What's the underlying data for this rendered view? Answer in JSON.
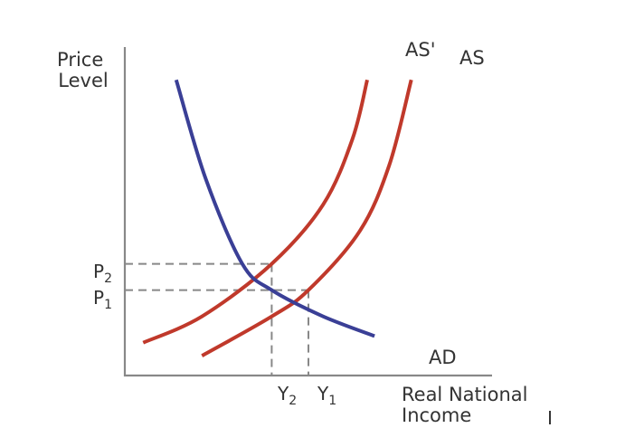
{
  "chart_data": {
    "type": "line",
    "title": "",
    "ylabel_lines": [
      "Price",
      "Level"
    ],
    "xlabel_lines": [
      "Real National",
      "Income"
    ],
    "x_ticks": [
      {
        "main": "Y",
        "sub": "2"
      },
      {
        "main": "Y",
        "sub": "1"
      }
    ],
    "y_ticks": [
      {
        "main": "P",
        "sub": "2"
      },
      {
        "main": "P",
        "sub": "1"
      }
    ],
    "series": [
      {
        "name": "AD",
        "color": "#3a3f96",
        "points": [
          [
            1.4,
            9.0
          ],
          [
            2.2,
            6.0
          ],
          [
            3.2,
            3.4
          ],
          [
            4.0,
            2.6
          ],
          [
            5.4,
            1.8
          ],
          [
            6.8,
            1.2
          ]
        ]
      },
      {
        "name": "AS'",
        "color": "#c0392b",
        "points": [
          [
            0.5,
            1.0
          ],
          [
            2.1,
            1.8
          ],
          [
            4.0,
            3.4
          ],
          [
            5.4,
            5.2
          ],
          [
            6.2,
            7.2
          ],
          [
            6.6,
            9.0
          ]
        ]
      },
      {
        "name": "AS",
        "color": "#c0392b",
        "points": [
          [
            2.1,
            0.6
          ],
          [
            4.0,
            1.8
          ],
          [
            5.0,
            2.6
          ],
          [
            6.4,
            4.4
          ],
          [
            7.2,
            6.4
          ],
          [
            7.8,
            9.0
          ]
        ]
      }
    ],
    "equilibria": [
      {
        "x": 4.0,
        "y": 3.4,
        "x_tick": "Y2",
        "y_tick": "P2"
      },
      {
        "x": 5.0,
        "y": 2.6,
        "x_tick": "Y1",
        "y_tick": "P1"
      }
    ],
    "xlim": [
      0,
      10
    ],
    "ylim": [
      0,
      10
    ],
    "grid": false,
    "colors": {
      "ad": "#3a3f96",
      "as": "#c0392b",
      "axis": "#888888",
      "guide": "#888888",
      "text": "#333333"
    }
  }
}
